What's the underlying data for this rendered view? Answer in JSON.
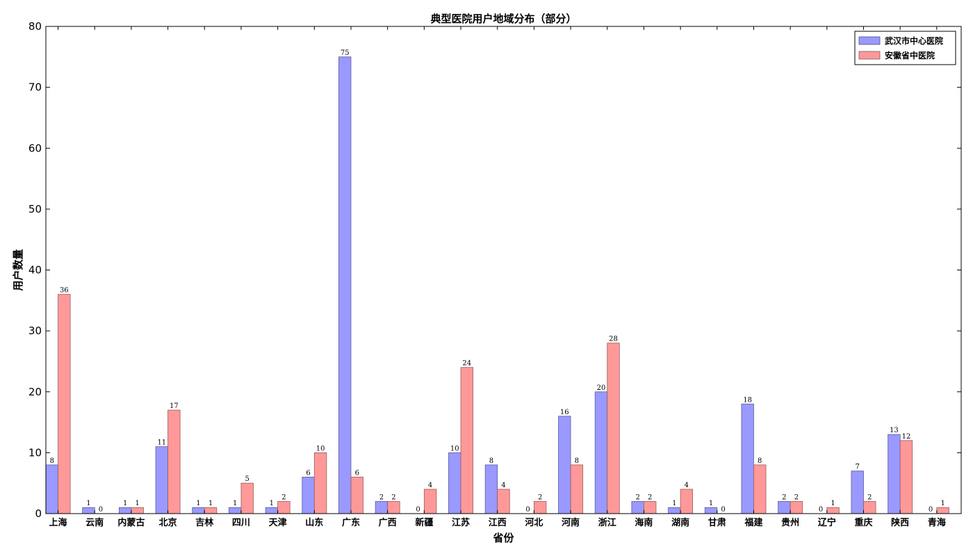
{
  "chart_data": {
    "type": "bar",
    "title": "典型医院用户地域分布（部分）",
    "xlabel": "省份",
    "ylabel": "用户数量",
    "ylim": [
      0,
      80
    ],
    "yticks": [
      0,
      10,
      20,
      30,
      40,
      50,
      60,
      70,
      80
    ],
    "grid": false,
    "legend_position": "top-right",
    "categories": [
      "上海",
      "云南",
      "内蒙古",
      "北京",
      "吉林",
      "四川",
      "天津",
      "山东",
      "广东",
      "广西",
      "新疆",
      "江苏",
      "江西",
      "河北",
      "河南",
      "浙江",
      "海南",
      "湖南",
      "甘肃",
      "福建",
      "贵州",
      "辽宁",
      "重庆",
      "陕西",
      "青海"
    ],
    "series": [
      {
        "name": "武汉市中心医院",
        "color": "#9999ff",
        "values": [
          8,
          1,
          1,
          11,
          1,
          1,
          1,
          6,
          75,
          2,
          0,
          10,
          8,
          0,
          16,
          20,
          2,
          1,
          1,
          18,
          2,
          0,
          7,
          13,
          0
        ]
      },
      {
        "name": "安徽省中医院",
        "color": "#ff9999",
        "values": [
          36,
          0,
          1,
          17,
          1,
          5,
          2,
          10,
          6,
          2,
          4,
          24,
          4,
          2,
          8,
          28,
          2,
          4,
          0,
          8,
          2,
          1,
          2,
          12,
          1
        ]
      }
    ]
  }
}
